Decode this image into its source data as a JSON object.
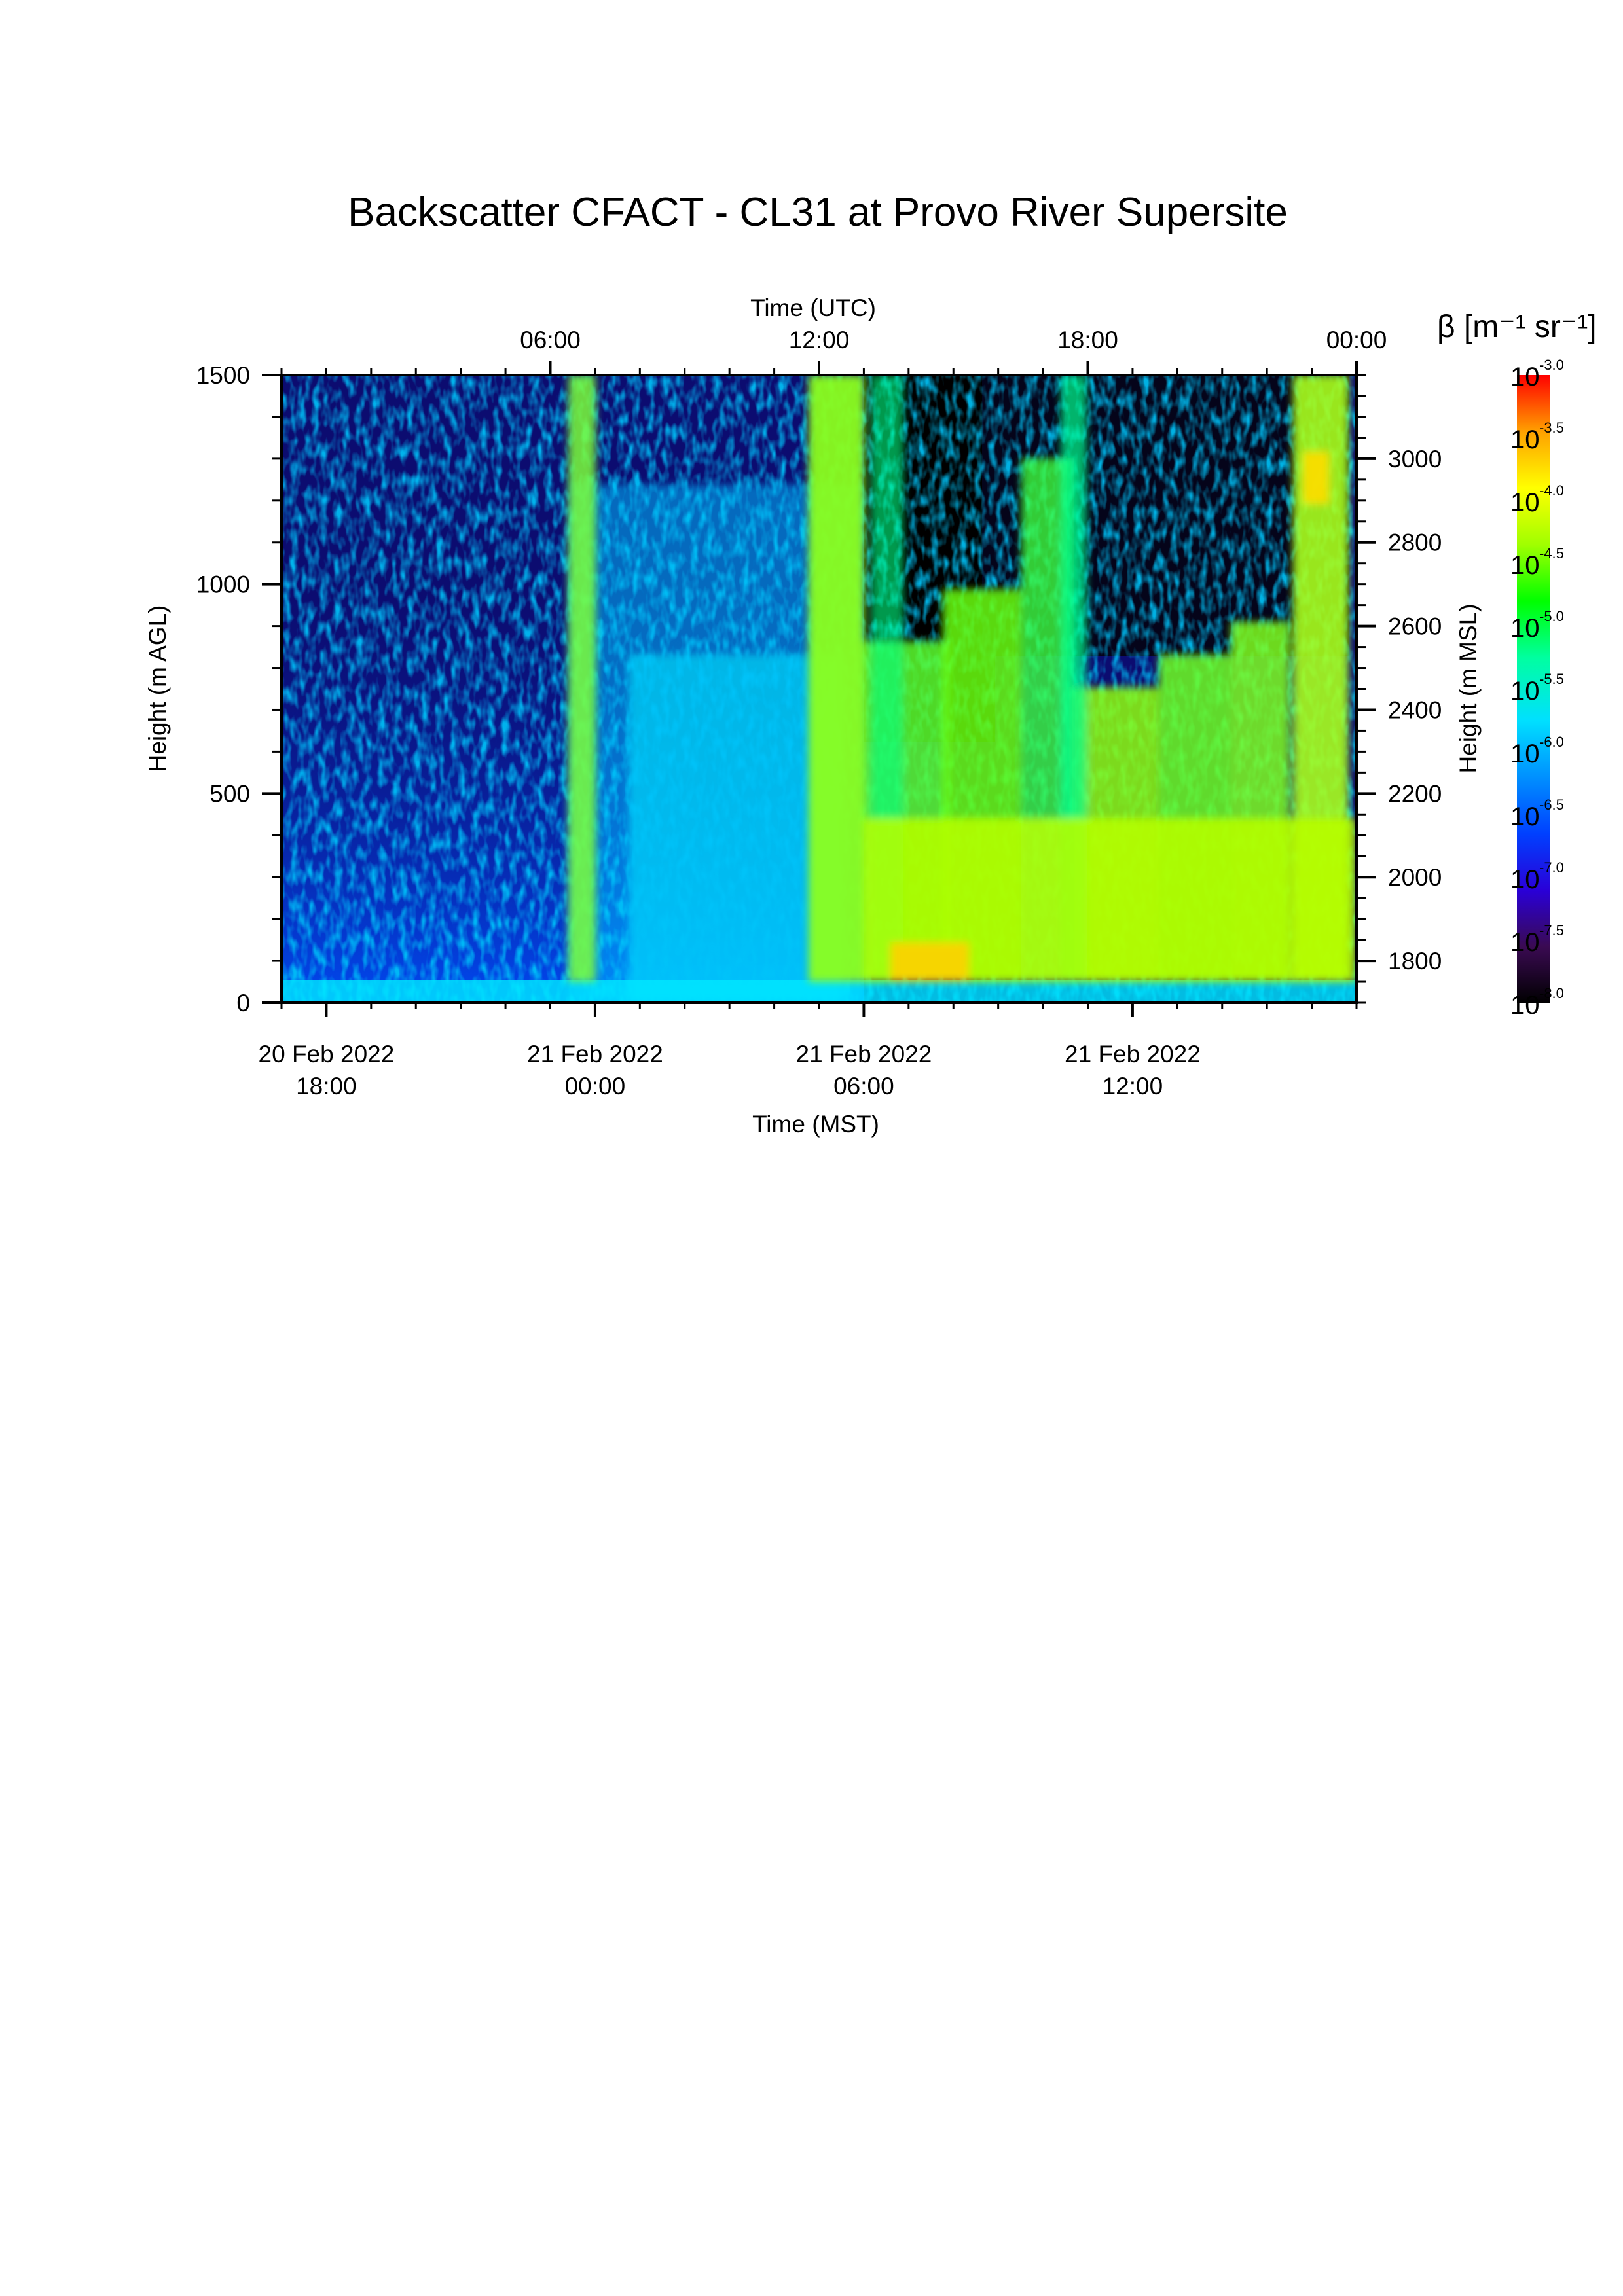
{
  "chart_data": {
    "type": "heatmap",
    "title": "Backscatter CFACT - CL31 at Provo River Supersite",
    "x_bottom": {
      "label": "Time (MST)",
      "range": [
        "2022-02-20 17:00",
        "2022-02-21 17:00"
      ],
      "ticks": [
        {
          "date": "20 Feb 2022",
          "time": "18:00"
        },
        {
          "date": "21 Feb 2022",
          "time": "00:00"
        },
        {
          "date": "21 Feb 2022",
          "time": "06:00"
        },
        {
          "date": "21 Feb 2022",
          "time": "12:00"
        }
      ],
      "tick_values_hours": [
        1,
        7,
        13,
        19
      ]
    },
    "x_top": {
      "label": "Time (UTC)",
      "ticks": [
        "06:00",
        "12:00",
        "18:00",
        "00:00"
      ],
      "tick_values_hours": [
        6,
        12,
        18,
        24
      ]
    },
    "y_left": {
      "label": "Height (m AGL)",
      "range": [
        0,
        1500
      ],
      "ticks": [
        0,
        500,
        1000,
        1500
      ]
    },
    "y_right": {
      "label": "Height (m MSL)",
      "range": [
        1700,
        3200
      ],
      "ticks": [
        1800,
        2000,
        2200,
        2400,
        2600,
        2800,
        3000
      ]
    },
    "colorbar": {
      "label": "β [m⁻¹ sr⁻¹]",
      "scale": "log",
      "range": [
        -8.0,
        -3.0
      ],
      "tick_exponents": [
        "-3.0",
        "-3.5",
        "-4.0",
        "-4.5",
        "-5.0",
        "-5.5",
        "-6.0",
        "-6.5",
        "-7.0",
        "-7.5",
        "-8.0"
      ],
      "base": "10",
      "colors": [
        "#000000",
        "#3a0a52",
        "#2a00d8",
        "#0040ff",
        "#0090ff",
        "#00e0ff",
        "#00ffa0",
        "#00ff00",
        "#a0ff00",
        "#ffff00",
        "#ffa000",
        "#ff0000"
      ]
    }
  }
}
